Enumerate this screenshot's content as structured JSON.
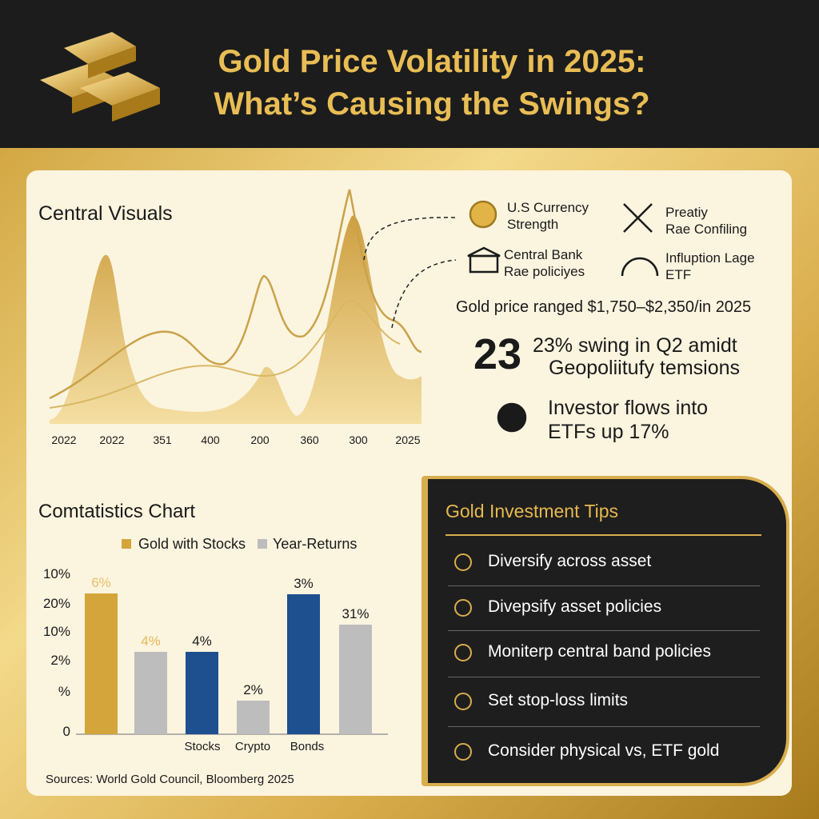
{
  "header": {
    "title_lines": [
      "Gold Price Volatility in 2025:",
      "What’s Causing the Swings?"
    ]
  },
  "central_visuals": {
    "title": "Central Visuals",
    "x_labels": [
      "2022",
      "2022",
      "351",
      "400",
      "200",
      "360",
      "300",
      "2025"
    ]
  },
  "factors": [
    {
      "lines": [
        "U.S Currency",
        "Strength"
      ]
    },
    {
      "lines": [
        "Preatiy",
        "Rae Confiling"
      ]
    },
    {
      "lines": [
        "Central Bank",
        "Rae policiyes"
      ]
    },
    {
      "lines": [
        "Influption Lage",
        "ETF"
      ]
    }
  ],
  "stats": {
    "price_range": "Gold price ranged $1,750–$2,350/in 2025",
    "swing_number": "23",
    "swing_lines": [
      "23% swing in Q2 amidt",
      "Geopoliitufy temsions"
    ],
    "flows_lines": [
      "Investor flows into",
      "ETFs up 17%"
    ]
  },
  "comparison_chart": {
    "title": "Comtatistics Chart",
    "legend": [
      "Gold with Stocks",
      "Year-Returns"
    ],
    "y_labels": [
      "10%",
      "20%",
      "10%",
      "2%",
      "%",
      "0"
    ],
    "bar_labels": [
      "6%",
      "4%",
      "4%",
      "2%",
      "3%",
      "31%"
    ],
    "x_labels": [
      "Stocks",
      "Crypto",
      "Bonds"
    ]
  },
  "source": "Sources: World Gold Council, Bloomberg 2025",
  "tips": {
    "title": "Gold Investment Tips",
    "items": [
      "Diversify across asset",
      "Divepsify asset policies",
      "Moniterp central band policies",
      "Set stop-loss limits",
      "Consider physical vs, ETF gold"
    ]
  }
}
